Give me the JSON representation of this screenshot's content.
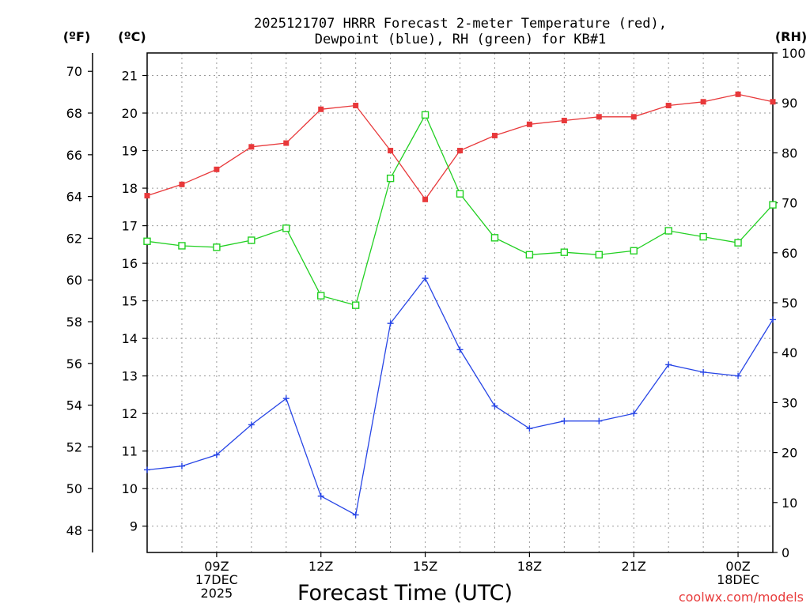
{
  "chart_data": {
    "type": "line",
    "title_lines": [
      "2025121707 HRRR Forecast 2-meter Temperature (red),",
      "Dewpoint (blue), RH (green) for KB#1"
    ],
    "xlabel": "Forecast Time (UTC)",
    "credit": "coolwx.com/models",
    "unit_labels": {
      "fahrenheit": "(ºF)",
      "celsius": "(ºC)",
      "rh": "(RH)"
    },
    "x_hours": [
      7,
      8,
      9,
      10,
      11,
      12,
      13,
      14,
      15,
      16,
      17,
      18,
      19,
      20,
      21,
      22,
      23,
      24,
      25
    ],
    "x_ticks": [
      {
        "hour": 9,
        "lines": [
          "09Z",
          "17DEC",
          "2025"
        ]
      },
      {
        "hour": 12,
        "lines": [
          "12Z"
        ]
      },
      {
        "hour": 15,
        "lines": [
          "15Z"
        ]
      },
      {
        "hour": 18,
        "lines": [
          "18Z"
        ]
      },
      {
        "hour": 21,
        "lines": [
          "21Z"
        ]
      },
      {
        "hour": 24,
        "lines": [
          "00Z",
          "18DEC"
        ]
      }
    ],
    "xlim": [
      7,
      25
    ],
    "celsius_axis": {
      "ticks": [
        9,
        10,
        11,
        12,
        13,
        14,
        15,
        16,
        17,
        18,
        19,
        20,
        21
      ],
      "lim": [
        8.3,
        21.6
      ]
    },
    "fahrenheit_axis": {
      "ticks": [
        48,
        50,
        52,
        54,
        56,
        58,
        60,
        62,
        64,
        66,
        68,
        70
      ]
    },
    "rh_axis": {
      "ticks": [
        0,
        10,
        20,
        30,
        40,
        50,
        60,
        70,
        80,
        90,
        100
      ],
      "lim": [
        0,
        100
      ]
    },
    "grid": true,
    "series": [
      {
        "name": "Temperature",
        "color": "#e8383a",
        "marker": "filled-square",
        "axis": "celsius",
        "values": [
          17.8,
          18.1,
          18.5,
          19.1,
          19.2,
          20.1,
          20.2,
          19.0,
          17.7,
          19.0,
          19.4,
          19.7,
          19.8,
          19.9,
          19.9,
          20.2,
          20.3,
          20.5,
          20.3
        ]
      },
      {
        "name": "Dewpoint",
        "color": "#2846e6",
        "marker": "plus",
        "axis": "celsius",
        "values": [
          10.5,
          10.6,
          10.9,
          11.7,
          12.4,
          9.8,
          9.3,
          14.4,
          15.6,
          13.7,
          12.2,
          11.6,
          11.8,
          11.8,
          12.0,
          13.3,
          13.1,
          13.0,
          14.5
        ]
      },
      {
        "name": "RH",
        "color": "#22d022",
        "marker": "open-square",
        "axis": "rh",
        "values": [
          62.3,
          61.4,
          61.1,
          62.5,
          64.9,
          51.4,
          49.5,
          74.9,
          87.6,
          71.8,
          63.0,
          59.6,
          60.1,
          59.6,
          60.4,
          64.4,
          63.2,
          62.0,
          69.6
        ]
      }
    ]
  }
}
